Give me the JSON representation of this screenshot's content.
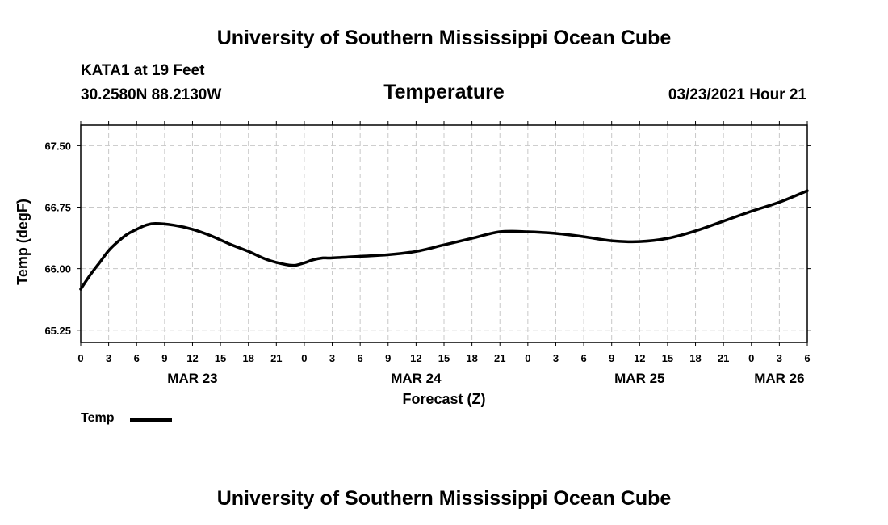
{
  "page": {
    "top_title": "University of Southern Mississippi Ocean Cube",
    "bottom_title": "University of Southern Mississippi Ocean Cube",
    "station": "KATA1 at 19 Feet",
    "coords": "30.2580N 88.2130W",
    "datetime": "03/23/2021 Hour 21"
  },
  "chart_data": {
    "type": "line",
    "title": "Temperature",
    "xlabel": "Forecast (Z)",
    "ylabel": "Temp (degF)",
    "xlim": [
      0,
      78
    ],
    "ylim": [
      65.1,
      67.75
    ],
    "yticks": [
      65.25,
      66.0,
      66.75,
      67.5
    ],
    "ytick_labels": [
      "65.25",
      "66.00",
      "66.75",
      "67.50"
    ],
    "xticks": [
      0,
      3,
      6,
      9,
      12,
      15,
      18,
      21,
      24,
      27,
      30,
      33,
      36,
      39,
      42,
      45,
      48,
      51,
      54,
      57,
      60,
      63,
      66,
      69,
      72,
      75,
      78
    ],
    "xtick_labels": [
      "0",
      "3",
      "6",
      "9",
      "12",
      "15",
      "18",
      "21",
      "0",
      "3",
      "6",
      "9",
      "12",
      "15",
      "18",
      "21",
      "0",
      "3",
      "6",
      "9",
      "12",
      "15",
      "18",
      "21",
      "0",
      "3",
      "6"
    ],
    "date_labels": [
      {
        "x": 12,
        "label": "MAR 23"
      },
      {
        "x": 36,
        "label": "MAR 24"
      },
      {
        "x": 60,
        "label": "MAR 25"
      },
      {
        "x": 75,
        "label": "MAR 26"
      }
    ],
    "grid": true,
    "series": [
      {
        "name": "Temp",
        "color": "#000000",
        "x": [
          0,
          1,
          2,
          3,
          4,
          5,
          6,
          7,
          8,
          10,
          12,
          14,
          16,
          18,
          20,
          22,
          23,
          24,
          25,
          26,
          27,
          30,
          33,
          36,
          39,
          42,
          45,
          48,
          51,
          54,
          57,
          60,
          63,
          66,
          69,
          72,
          75,
          78
        ],
        "values": [
          65.75,
          65.92,
          66.07,
          66.22,
          66.33,
          66.42,
          66.48,
          66.53,
          66.55,
          66.53,
          66.48,
          66.4,
          66.3,
          66.21,
          66.11,
          66.05,
          66.04,
          66.07,
          66.11,
          66.13,
          66.13,
          66.15,
          66.17,
          66.21,
          66.29,
          66.37,
          66.45,
          66.45,
          66.43,
          66.39,
          66.34,
          66.33,
          66.37,
          66.46,
          66.58,
          66.7,
          66.81,
          66.95
        ]
      }
    ],
    "legend": [
      {
        "label": "Temp",
        "position": "bottom-left"
      }
    ]
  }
}
